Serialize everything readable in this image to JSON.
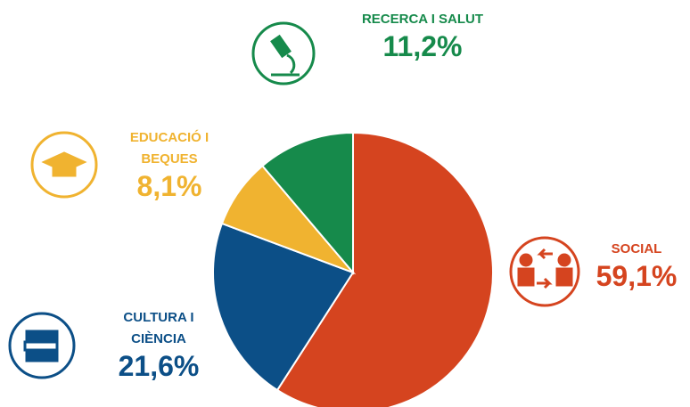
{
  "chart_data": {
    "type": "pie",
    "categories": [
      "SOCIAL",
      "CULTURA I CIÈNCIA",
      "EDUCACIÓ I BEQUES",
      "RECERCA I SALUT"
    ],
    "values": [
      59.1,
      21.6,
      8.1,
      11.2
    ],
    "value_labels": [
      "59,1%",
      "21,6%",
      "8,1%",
      "11,2%"
    ],
    "colors": [
      "#d5441f",
      "#0c4f87",
      "#f0b330",
      "#168a4b"
    ]
  }
}
